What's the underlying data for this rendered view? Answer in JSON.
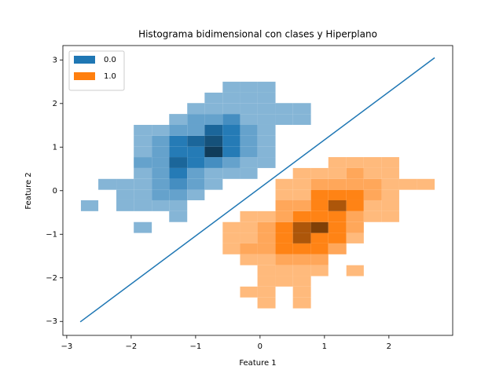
{
  "chart_data": {
    "type": "hist2d",
    "title": "Histograma bidimensional con clases y Hiperplano",
    "xlabel": "Feature 1",
    "ylabel": "Feature 2",
    "xlim": [
      -3.06,
      2.99
    ],
    "ylim": [
      -3.32,
      3.33
    ],
    "xticks": [
      {
        "value": -3,
        "label": "−3"
      },
      {
        "value": -2,
        "label": "−2"
      },
      {
        "value": -1,
        "label": "−1"
      },
      0,
      1,
      2
    ],
    "yticks": [
      {
        "value": -3,
        "label": "−3"
      },
      {
        "value": -2,
        "label": "−2"
      },
      {
        "value": -1,
        "label": "−1"
      },
      0,
      1,
      2,
      3
    ],
    "legend": "upper left",
    "xbins": [
      -2.78,
      -2.51,
      -2.23,
      -1.96,
      -1.68,
      -1.41,
      -1.13,
      -0.86,
      -0.58,
      -0.31,
      -0.04,
      0.24,
      0.51,
      0.79,
      1.06,
      1.34,
      1.61,
      1.89,
      2.16,
      2.44,
      2.71
    ],
    "ybins": [
      -2.7,
      -2.45,
      -2.2,
      -1.96,
      -1.71,
      -1.46,
      -1.21,
      -0.97,
      -0.72,
      -0.47,
      -0.22,
      0.02,
      0.27,
      0.52,
      0.77,
      1.01,
      1.26,
      1.51,
      1.76,
      2.01,
      2.25,
      2.5
    ],
    "series": [
      {
        "name": "0.0",
        "color": "#1f77b4",
        "counts": [
          [
            0,
            0,
            0,
            0,
            0,
            0,
            0,
            0,
            0,
            0,
            0,
            0,
            0,
            0,
            0,
            0,
            0,
            0,
            0,
            0
          ],
          [
            0,
            0,
            0,
            0,
            0,
            0,
            0,
            0,
            0,
            0,
            0,
            0,
            0,
            0,
            0,
            0,
            0,
            0,
            0,
            0
          ],
          [
            0,
            0,
            0,
            0,
            0,
            0,
            0,
            0,
            0,
            0,
            0,
            0,
            0,
            0,
            0,
            0,
            0,
            0,
            0,
            0
          ],
          [
            0,
            0,
            0,
            0,
            0,
            0,
            0,
            0,
            0,
            0,
            0,
            0,
            0,
            0,
            0,
            0,
            0,
            0,
            0,
            0
          ],
          [
            0,
            0,
            0,
            0,
            0,
            0,
            0,
            0,
            0,
            0,
            0,
            0,
            0,
            0,
            0,
            0,
            0,
            0,
            0,
            0
          ],
          [
            0,
            0,
            0,
            0,
            0,
            0,
            0,
            0,
            0,
            0,
            0,
            0,
            0,
            0,
            0,
            0,
            0,
            0,
            0,
            0
          ],
          [
            0,
            0,
            0,
            0,
            0,
            0,
            0,
            0,
            0,
            0,
            0,
            0,
            0,
            0,
            0,
            0,
            0,
            0,
            0,
            0
          ],
          [
            0,
            0,
            0,
            1,
            0,
            0,
            0,
            0,
            0,
            0,
            0,
            0,
            0,
            0,
            0,
            0,
            0,
            0,
            0,
            0
          ],
          [
            0,
            0,
            0,
            0,
            0,
            1,
            0,
            0,
            0,
            0,
            0,
            0,
            0,
            0,
            0,
            0,
            0,
            0,
            0,
            0
          ],
          [
            1,
            0,
            1,
            1,
            1,
            1,
            0,
            0,
            0,
            0,
            0,
            0,
            0,
            0,
            0,
            0,
            0,
            0,
            0,
            0
          ],
          [
            0,
            0,
            1,
            1,
            2,
            2,
            1,
            0,
            0,
            0,
            0,
            0,
            0,
            0,
            0,
            0,
            0,
            0,
            0,
            0
          ],
          [
            0,
            1,
            1,
            1,
            2,
            3,
            2,
            1,
            0,
            0,
            0,
            0,
            0,
            0,
            0,
            0,
            0,
            0,
            0,
            0
          ],
          [
            0,
            0,
            0,
            1,
            2,
            4,
            2,
            1,
            1,
            1,
            0,
            0,
            0,
            0,
            0,
            0,
            0,
            0,
            0,
            0
          ],
          [
            0,
            0,
            0,
            2,
            2,
            5,
            4,
            3,
            2,
            1,
            1,
            0,
            0,
            0,
            0,
            0,
            0,
            0,
            0,
            0
          ],
          [
            0,
            0,
            0,
            1,
            2,
            4,
            4,
            7,
            4,
            2,
            1,
            0,
            0,
            0,
            0,
            0,
            0,
            0,
            0,
            0
          ],
          [
            0,
            0,
            0,
            1,
            2,
            4,
            5,
            6,
            4,
            2,
            1,
            0,
            0,
            0,
            0,
            0,
            0,
            0,
            0,
            0
          ],
          [
            0,
            0,
            0,
            1,
            1,
            2,
            2,
            5,
            4,
            2,
            1,
            0,
            0,
            0,
            0,
            0,
            0,
            0,
            0,
            0
          ],
          [
            0,
            0,
            0,
            0,
            0,
            1,
            2,
            2,
            3,
            1,
            1,
            1,
            1,
            0,
            0,
            0,
            0,
            0,
            0,
            0
          ],
          [
            0,
            0,
            0,
            0,
            0,
            0,
            1,
            1,
            1,
            1,
            1,
            1,
            1,
            0,
            0,
            0,
            0,
            0,
            0,
            0
          ],
          [
            0,
            0,
            0,
            0,
            0,
            0,
            0,
            1,
            1,
            1,
            1,
            0,
            0,
            0,
            0,
            0,
            0,
            0,
            0,
            0
          ],
          [
            0,
            0,
            0,
            0,
            0,
            0,
            0,
            0,
            1,
            1,
            1,
            0,
            0,
            0,
            0,
            0,
            0,
            0,
            0,
            0
          ]
        ]
      },
      {
        "name": "1.0",
        "color": "#ff7f0e",
        "counts": [
          [
            0,
            0,
            0,
            0,
            0,
            0,
            0,
            0,
            0,
            0,
            1,
            0,
            1,
            0,
            0,
            0,
            0,
            0,
            0,
            0
          ],
          [
            0,
            0,
            0,
            0,
            0,
            0,
            0,
            0,
            0,
            1,
            1,
            0,
            1,
            0,
            0,
            0,
            0,
            0,
            0,
            0
          ],
          [
            0,
            0,
            0,
            0,
            0,
            0,
            0,
            0,
            0,
            0,
            1,
            1,
            1,
            0,
            0,
            0,
            0,
            0,
            0,
            0
          ],
          [
            0,
            0,
            0,
            0,
            0,
            0,
            0,
            0,
            0,
            0,
            1,
            1,
            1,
            1,
            0,
            1,
            0,
            0,
            0,
            0
          ],
          [
            0,
            0,
            0,
            0,
            0,
            0,
            0,
            0,
            0,
            1,
            1,
            2,
            2,
            2,
            0,
            0,
            0,
            0,
            0,
            0
          ],
          [
            0,
            0,
            0,
            0,
            0,
            0,
            0,
            0,
            1,
            2,
            2,
            4,
            4,
            4,
            2,
            0,
            0,
            0,
            0,
            0
          ],
          [
            0,
            0,
            0,
            0,
            0,
            0,
            0,
            0,
            1,
            1,
            2,
            4,
            6,
            4,
            4,
            1,
            0,
            0,
            0,
            0
          ],
          [
            0,
            0,
            0,
            0,
            0,
            0,
            0,
            0,
            1,
            1,
            2,
            4,
            6,
            7,
            4,
            2,
            0,
            0,
            0,
            0
          ],
          [
            0,
            0,
            0,
            0,
            0,
            0,
            0,
            0,
            0,
            1,
            1,
            2,
            4,
            4,
            4,
            2,
            1,
            1,
            0,
            0
          ],
          [
            0,
            0,
            0,
            0,
            0,
            0,
            0,
            0,
            0,
            0,
            0,
            2,
            2,
            4,
            6,
            4,
            1,
            1,
            0,
            0
          ],
          [
            0,
            0,
            0,
            0,
            0,
            0,
            0,
            0,
            0,
            0,
            0,
            1,
            1,
            4,
            4,
            4,
            2,
            1,
            0,
            0
          ],
          [
            0,
            0,
            0,
            0,
            0,
            0,
            0,
            0,
            0,
            0,
            0,
            1,
            1,
            2,
            2,
            2,
            2,
            1,
            1,
            1
          ],
          [
            0,
            0,
            0,
            0,
            0,
            0,
            0,
            0,
            0,
            0,
            0,
            0,
            1,
            1,
            1,
            2,
            1,
            1,
            0,
            0
          ],
          [
            0,
            0,
            0,
            0,
            0,
            0,
            0,
            0,
            0,
            0,
            0,
            0,
            0,
            0,
            1,
            1,
            1,
            1,
            0,
            0
          ],
          [
            0,
            0,
            0,
            0,
            0,
            0,
            0,
            0,
            0,
            0,
            0,
            0,
            0,
            0,
            0,
            0,
            0,
            0,
            0,
            0
          ],
          [
            0,
            0,
            0,
            0,
            0,
            0,
            0,
            0,
            0,
            0,
            0,
            0,
            0,
            0,
            0,
            0,
            0,
            0,
            0,
            0
          ],
          [
            0,
            0,
            0,
            0,
            0,
            0,
            0,
            0,
            0,
            0,
            0,
            0,
            0,
            0,
            0,
            0,
            0,
            0,
            0,
            0
          ],
          [
            0,
            0,
            0,
            0,
            0,
            0,
            0,
            0,
            0,
            0,
            0,
            0,
            0,
            0,
            0,
            0,
            0,
            0,
            0,
            0
          ],
          [
            0,
            0,
            0,
            0,
            0,
            0,
            0,
            0,
            0,
            0,
            0,
            0,
            0,
            0,
            0,
            0,
            0,
            0,
            0,
            0
          ],
          [
            0,
            0,
            0,
            0,
            0,
            0,
            0,
            0,
            0,
            0,
            0,
            0,
            0,
            0,
            0,
            0,
            0,
            0,
            0,
            0
          ],
          [
            0,
            0,
            0,
            0,
            0,
            0,
            0,
            0,
            0,
            0,
            0,
            0,
            0,
            0,
            0,
            0,
            0,
            0,
            0,
            0
          ]
        ]
      }
    ],
    "lines": [
      {
        "color": "#1f77b4",
        "x": [
          -2.79,
          2.71
        ],
        "y": [
          -3.01,
          3.05
        ]
      }
    ]
  }
}
